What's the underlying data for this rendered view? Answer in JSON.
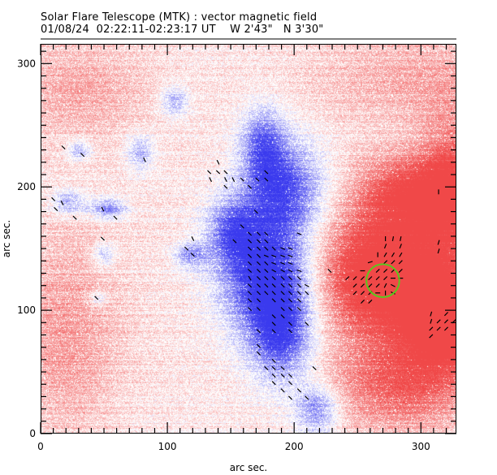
{
  "header": {
    "title": "Solar Flare Telescope (MTK) : vector magnetic field",
    "date": "01/08/24",
    "time_range": "02:22:11-02:23:17 UT",
    "pos_w": "W 2'43\"",
    "pos_n": "N 3'30\""
  },
  "colors": {
    "positive": "#f04848",
    "negative": "#3a3aee",
    "circle": "#5ac81e",
    "vector": "#000000"
  },
  "chart_data": {
    "type": "heatmap",
    "title": "Solar Flare Telescope (MTK) : vector magnetic field",
    "xlabel": "arc sec.",
    "ylabel": "arc sec.",
    "xlim": [
      0,
      328
    ],
    "ylim": [
      0,
      316
    ],
    "x_ticks": [
      0,
      100,
      200,
      300
    ],
    "x_tick_labels": [
      "0",
      "100",
      "200",
      "300"
    ],
    "y_ticks": [
      0,
      100,
      200,
      300
    ],
    "y_tick_labels": [
      "0",
      "100",
      "200",
      "300"
    ],
    "x_minor_step": 10,
    "y_minor_step": 10,
    "legend": "none",
    "field_sources": [
      {
        "polarity": "negative",
        "x": 178,
        "y": 130,
        "sx": 26,
        "sy": 34,
        "amp": 1.0
      },
      {
        "polarity": "negative",
        "x": 192,
        "y": 200,
        "sx": 22,
        "sy": 28,
        "amp": 0.75
      },
      {
        "polarity": "negative",
        "x": 175,
        "y": 235,
        "sx": 12,
        "sy": 22,
        "amp": 0.6
      },
      {
        "polarity": "negative",
        "x": 190,
        "y": 80,
        "sx": 18,
        "sy": 28,
        "amp": 0.75
      },
      {
        "polarity": "negative",
        "x": 218,
        "y": 20,
        "sx": 12,
        "sy": 14,
        "amp": 0.6
      },
      {
        "polarity": "negative",
        "x": 150,
        "y": 165,
        "sx": 14,
        "sy": 18,
        "amp": 0.55
      },
      {
        "polarity": "negative",
        "x": 118,
        "y": 145,
        "sx": 9,
        "sy": 7,
        "amp": 0.5
      },
      {
        "polarity": "negative",
        "x": 105,
        "y": 270,
        "sx": 8,
        "sy": 9,
        "amp": 0.45
      },
      {
        "polarity": "negative",
        "x": 22,
        "y": 188,
        "sx": 10,
        "sy": 7,
        "amp": 0.5
      },
      {
        "polarity": "negative",
        "x": 53,
        "y": 183,
        "sx": 10,
        "sy": 6,
        "amp": 0.6
      },
      {
        "polarity": "negative",
        "x": 30,
        "y": 230,
        "sx": 7,
        "sy": 6,
        "amp": 0.45
      },
      {
        "polarity": "negative",
        "x": 78,
        "y": 228,
        "sx": 8,
        "sy": 10,
        "amp": 0.45
      },
      {
        "polarity": "negative",
        "x": 50,
        "y": 145,
        "sx": 6,
        "sy": 7,
        "amp": 0.4
      },
      {
        "polarity": "negative",
        "x": 45,
        "y": 110,
        "sx": 5,
        "sy": 5,
        "amp": 0.35
      },
      {
        "polarity": "positive",
        "x": 272,
        "y": 128,
        "sx": 40,
        "sy": 34,
        "amp": 1.0
      },
      {
        "polarity": "positive",
        "x": 320,
        "y": 90,
        "sx": 22,
        "sy": 26,
        "amp": 0.8
      },
      {
        "polarity": "positive",
        "x": 290,
        "y": 195,
        "sx": 30,
        "sy": 22,
        "amp": 0.65
      },
      {
        "polarity": "positive",
        "x": 285,
        "y": 40,
        "sx": 40,
        "sy": 28,
        "amp": 0.55
      },
      {
        "polarity": "positive",
        "x": 325,
        "y": 200,
        "sx": 18,
        "sy": 40,
        "amp": 0.55
      },
      {
        "polarity": "positive",
        "x": 20,
        "y": 80,
        "sx": 30,
        "sy": 60,
        "amp": 0.3
      },
      {
        "polarity": "positive",
        "x": 30,
        "y": 280,
        "sx": 40,
        "sy": 30,
        "amp": 0.25
      },
      {
        "polarity": "positive",
        "x": 300,
        "y": 290,
        "sx": 60,
        "sy": 30,
        "amp": 0.25
      }
    ],
    "sunspot_circle": {
      "x": 270,
      "y": 124,
      "r": 13
    },
    "vectors": [
      {
        "x": 18,
        "y": 232,
        "dx": 1,
        "dy": -1
      },
      {
        "x": 33,
        "y": 226,
        "dx": 1,
        "dy": -1
      },
      {
        "x": 82,
        "y": 222,
        "dx": 0.5,
        "dy": -1
      },
      {
        "x": 10,
        "y": 190,
        "dx": 1,
        "dy": -1
      },
      {
        "x": 17,
        "y": 187,
        "dx": 0.5,
        "dy": -1
      },
      {
        "x": 12,
        "y": 182,
        "dx": 1,
        "dy": -1
      },
      {
        "x": 27,
        "y": 175,
        "dx": 1,
        "dy": -1
      },
      {
        "x": 49,
        "y": 182,
        "dx": -0.5,
        "dy": 1
      },
      {
        "x": 59,
        "y": 175,
        "dx": 1,
        "dy": -1
      },
      {
        "x": 49,
        "y": 158,
        "dx": -1,
        "dy": 1
      },
      {
        "x": 44,
        "y": 110,
        "dx": 1,
        "dy": -1
      },
      {
        "x": 120,
        "y": 158,
        "dx": 0.5,
        "dy": -1
      },
      {
        "x": 115,
        "y": 150,
        "dx": 1,
        "dy": -1
      },
      {
        "x": 120,
        "y": 145,
        "dx": 1,
        "dy": -1
      },
      {
        "x": 140,
        "y": 220,
        "dx": 0.5,
        "dy": -1
      },
      {
        "x": 133,
        "y": 212,
        "dx": 1,
        "dy": -1
      },
      {
        "x": 140,
        "y": 212,
        "dx": 1,
        "dy": -1
      },
      {
        "x": 146,
        "y": 212,
        "dx": 1,
        "dy": -1
      },
      {
        "x": 134,
        "y": 206,
        "dx": 0.5,
        "dy": -1
      },
      {
        "x": 146,
        "y": 206,
        "dx": 0.5,
        "dy": -1
      },
      {
        "x": 152,
        "y": 206,
        "dx": 0.5,
        "dy": -1
      },
      {
        "x": 159,
        "y": 206,
        "dx": 1,
        "dy": -1
      },
      {
        "x": 171,
        "y": 206,
        "dx": 1,
        "dy": -1
      },
      {
        "x": 178,
        "y": 206,
        "dx": 1,
        "dy": -1
      },
      {
        "x": 178,
        "y": 212,
        "dx": 1,
        "dy": -1
      },
      {
        "x": 146,
        "y": 200,
        "dx": 1,
        "dy": -1
      },
      {
        "x": 165,
        "y": 200,
        "dx": 1,
        "dy": -1
      },
      {
        "x": 170,
        "y": 180,
        "dx": 1,
        "dy": -1
      },
      {
        "x": 159,
        "y": 168,
        "dx": 1,
        "dy": -1
      },
      {
        "x": 165,
        "y": 162,
        "dx": 1,
        "dy": -1
      },
      {
        "x": 172,
        "y": 162,
        "dx": 1,
        "dy": -1
      },
      {
        "x": 178,
        "y": 162,
        "dx": 1,
        "dy": -1
      },
      {
        "x": 204,
        "y": 162,
        "dx": 1,
        "dy": -0.4
      },
      {
        "x": 153,
        "y": 156,
        "dx": 1,
        "dy": -1
      },
      {
        "x": 165,
        "y": 156,
        "dx": 1,
        "dy": -1
      },
      {
        "x": 172,
        "y": 156,
        "dx": 1,
        "dy": -1
      },
      {
        "x": 178,
        "y": 156,
        "dx": 1,
        "dy": -1
      },
      {
        "x": 165,
        "y": 150,
        "dx": 1,
        "dy": -1
      },
      {
        "x": 172,
        "y": 150,
        "dx": 1,
        "dy": -1
      },
      {
        "x": 178,
        "y": 150,
        "dx": 1,
        "dy": -1
      },
      {
        "x": 184,
        "y": 150,
        "dx": 1,
        "dy": -1
      },
      {
        "x": 191,
        "y": 150,
        "dx": 1,
        "dy": -0.4
      },
      {
        "x": 197,
        "y": 150,
        "dx": 1,
        "dy": -0.4
      },
      {
        "x": 165,
        "y": 144,
        "dx": 1,
        "dy": -1
      },
      {
        "x": 172,
        "y": 144,
        "dx": 1,
        "dy": -1
      },
      {
        "x": 178,
        "y": 144,
        "dx": 1,
        "dy": -0.4
      },
      {
        "x": 184,
        "y": 144,
        "dx": 1,
        "dy": -0.4
      },
      {
        "x": 191,
        "y": 144,
        "dx": 1,
        "dy": -0.4
      },
      {
        "x": 197,
        "y": 144,
        "dx": 1,
        "dy": -0.4
      },
      {
        "x": 165,
        "y": 138,
        "dx": 1,
        "dy": -1
      },
      {
        "x": 172,
        "y": 138,
        "dx": 1,
        "dy": -1
      },
      {
        "x": 178,
        "y": 138,
        "dx": 1,
        "dy": -1
      },
      {
        "x": 184,
        "y": 138,
        "dx": 1,
        "dy": -0.4
      },
      {
        "x": 191,
        "y": 138,
        "dx": 1,
        "dy": -0.4
      },
      {
        "x": 197,
        "y": 138,
        "dx": 1,
        "dy": -0.4
      },
      {
        "x": 165,
        "y": 132,
        "dx": 1,
        "dy": -1
      },
      {
        "x": 172,
        "y": 132,
        "dx": 1,
        "dy": -1
      },
      {
        "x": 178,
        "y": 132,
        "dx": 1,
        "dy": -1
      },
      {
        "x": 184,
        "y": 132,
        "dx": 1,
        "dy": -0.6
      },
      {
        "x": 191,
        "y": 132,
        "dx": 1,
        "dy": -0.6
      },
      {
        "x": 197,
        "y": 132,
        "dx": 1,
        "dy": -0.6
      },
      {
        "x": 204,
        "y": 132,
        "dx": 1,
        "dy": -0.3
      },
      {
        "x": 228,
        "y": 132,
        "dx": 1,
        "dy": -1
      },
      {
        "x": 165,
        "y": 126,
        "dx": 0.6,
        "dy": -1
      },
      {
        "x": 172,
        "y": 126,
        "dx": 1,
        "dy": -1
      },
      {
        "x": 178,
        "y": 126,
        "dx": 1,
        "dy": -1
      },
      {
        "x": 184,
        "y": 126,
        "dx": 1,
        "dy": -1
      },
      {
        "x": 191,
        "y": 126,
        "dx": 1,
        "dy": -1
      },
      {
        "x": 197,
        "y": 126,
        "dx": 1,
        "dy": -1
      },
      {
        "x": 204,
        "y": 126,
        "dx": 1,
        "dy": -1
      },
      {
        "x": 165,
        "y": 120,
        "dx": 1,
        "dy": -1
      },
      {
        "x": 172,
        "y": 120,
        "dx": 1,
        "dy": -1
      },
      {
        "x": 178,
        "y": 120,
        "dx": 1,
        "dy": -1
      },
      {
        "x": 184,
        "y": 120,
        "dx": 1,
        "dy": -1
      },
      {
        "x": 191,
        "y": 120,
        "dx": 1,
        "dy": -1
      },
      {
        "x": 197,
        "y": 120,
        "dx": 1,
        "dy": -1
      },
      {
        "x": 204,
        "y": 120,
        "dx": 1,
        "dy": -1
      },
      {
        "x": 210,
        "y": 120,
        "dx": 1,
        "dy": -0.5
      },
      {
        "x": 165,
        "y": 114,
        "dx": 1,
        "dy": -1
      },
      {
        "x": 172,
        "y": 114,
        "dx": 1,
        "dy": -1
      },
      {
        "x": 178,
        "y": 114,
        "dx": 1,
        "dy": -1
      },
      {
        "x": 184,
        "y": 114,
        "dx": 1,
        "dy": -1
      },
      {
        "x": 191,
        "y": 114,
        "dx": 1,
        "dy": -1
      },
      {
        "x": 197,
        "y": 114,
        "dx": 1,
        "dy": -1
      },
      {
        "x": 204,
        "y": 114,
        "dx": 1,
        "dy": -1
      },
      {
        "x": 210,
        "y": 114,
        "dx": 1,
        "dy": -1
      },
      {
        "x": 165,
        "y": 108,
        "dx": 1,
        "dy": -1
      },
      {
        "x": 172,
        "y": 108,
        "dx": 1,
        "dy": -1
      },
      {
        "x": 184,
        "y": 108,
        "dx": 1,
        "dy": -1
      },
      {
        "x": 191,
        "y": 108,
        "dx": 1,
        "dy": -1
      },
      {
        "x": 197,
        "y": 108,
        "dx": 1,
        "dy": -1
      },
      {
        "x": 204,
        "y": 108,
        "dx": 1,
        "dy": -1
      },
      {
        "x": 165,
        "y": 101,
        "dx": 1,
        "dy": -1
      },
      {
        "x": 172,
        "y": 101,
        "dx": 1,
        "dy": -1
      },
      {
        "x": 191,
        "y": 101,
        "dx": 1,
        "dy": -1
      },
      {
        "x": 197,
        "y": 101,
        "dx": 1,
        "dy": -1
      },
      {
        "x": 204,
        "y": 101,
        "dx": 1,
        "dy": -1
      },
      {
        "x": 184,
        "y": 95,
        "dx": 1,
        "dy": -1
      },
      {
        "x": 191,
        "y": 95,
        "dx": 1,
        "dy": -1
      },
      {
        "x": 184,
        "y": 89,
        "dx": 1,
        "dy": -1
      },
      {
        "x": 197,
        "y": 89,
        "dx": 1,
        "dy": -1
      },
      {
        "x": 210,
        "y": 89,
        "dx": 1,
        "dy": -1
      },
      {
        "x": 172,
        "y": 83,
        "dx": 1,
        "dy": -1
      },
      {
        "x": 184,
        "y": 83,
        "dx": 1,
        "dy": -1
      },
      {
        "x": 197,
        "y": 83,
        "dx": 1,
        "dy": -1
      },
      {
        "x": 172,
        "y": 71,
        "dx": 1,
        "dy": -1
      },
      {
        "x": 172,
        "y": 65,
        "dx": 1,
        "dy": -1
      },
      {
        "x": 184,
        "y": 59,
        "dx": 1,
        "dy": -1
      },
      {
        "x": 178,
        "y": 53,
        "dx": 1,
        "dy": -1
      },
      {
        "x": 184,
        "y": 53,
        "dx": 1,
        "dy": -1
      },
      {
        "x": 191,
        "y": 53,
        "dx": 1,
        "dy": -1
      },
      {
        "x": 216,
        "y": 53,
        "dx": 1,
        "dy": -1
      },
      {
        "x": 184,
        "y": 47,
        "dx": 1,
        "dy": -1
      },
      {
        "x": 191,
        "y": 47,
        "dx": 1,
        "dy": -1
      },
      {
        "x": 197,
        "y": 47,
        "dx": 1,
        "dy": -1
      },
      {
        "x": 184,
        "y": 41,
        "dx": 1,
        "dy": -1
      },
      {
        "x": 197,
        "y": 41,
        "dx": 1,
        "dy": -1
      },
      {
        "x": 191,
        "y": 35,
        "dx": 1,
        "dy": -1
      },
      {
        "x": 204,
        "y": 35,
        "dx": 1,
        "dy": -1
      },
      {
        "x": 197,
        "y": 29,
        "dx": 1,
        "dy": -1
      },
      {
        "x": 210,
        "y": 29,
        "dx": 1,
        "dy": -1
      },
      {
        "x": 272,
        "y": 158,
        "dx": 0,
        "dy": 1
      },
      {
        "x": 278,
        "y": 158,
        "dx": 0.2,
        "dy": 1
      },
      {
        "x": 284,
        "y": 158,
        "dx": 0.2,
        "dy": 1
      },
      {
        "x": 272,
        "y": 152,
        "dx": 0.4,
        "dy": 1
      },
      {
        "x": 284,
        "y": 152,
        "dx": 0.4,
        "dy": 1
      },
      {
        "x": 266,
        "y": 145,
        "dx": 0,
        "dy": 1
      },
      {
        "x": 272,
        "y": 145,
        "dx": 0.6,
        "dy": 1
      },
      {
        "x": 278,
        "y": 145,
        "dx": 0.6,
        "dy": 1
      },
      {
        "x": 284,
        "y": 145,
        "dx": 0.6,
        "dy": 1
      },
      {
        "x": 260,
        "y": 139,
        "dx": 1,
        "dy": 0.3
      },
      {
        "x": 272,
        "y": 139,
        "dx": 1,
        "dy": 1
      },
      {
        "x": 278,
        "y": 139,
        "dx": 1,
        "dy": 1
      },
      {
        "x": 284,
        "y": 139,
        "dx": 1,
        "dy": 1
      },
      {
        "x": 254,
        "y": 132,
        "dx": 1,
        "dy": 0
      },
      {
        "x": 266,
        "y": 132,
        "dx": 1,
        "dy": 1
      },
      {
        "x": 272,
        "y": 132,
        "dx": 1,
        "dy": 1
      },
      {
        "x": 278,
        "y": 132,
        "dx": 1,
        "dy": 1
      },
      {
        "x": 284,
        "y": 132,
        "dx": 1,
        "dy": 1
      },
      {
        "x": 242,
        "y": 126,
        "dx": 1,
        "dy": 1
      },
      {
        "x": 248,
        "y": 126,
        "dx": 1,
        "dy": 1
      },
      {
        "x": 254,
        "y": 126,
        "dx": 1,
        "dy": 1
      },
      {
        "x": 260,
        "y": 126,
        "dx": 1,
        "dy": 1
      },
      {
        "x": 266,
        "y": 126,
        "dx": 1,
        "dy": 1
      },
      {
        "x": 272,
        "y": 126,
        "dx": 1,
        "dy": 1
      },
      {
        "x": 278,
        "y": 126,
        "dx": 1,
        "dy": 0
      },
      {
        "x": 284,
        "y": 126,
        "dx": 1,
        "dy": 0
      },
      {
        "x": 248,
        "y": 120,
        "dx": 1,
        "dy": 1
      },
      {
        "x": 254,
        "y": 120,
        "dx": 1,
        "dy": 1
      },
      {
        "x": 260,
        "y": 120,
        "dx": 1,
        "dy": 1
      },
      {
        "x": 266,
        "y": 120,
        "dx": 1,
        "dy": 1
      },
      {
        "x": 272,
        "y": 120,
        "dx": 0.5,
        "dy": 1
      },
      {
        "x": 278,
        "y": 120,
        "dx": 1,
        "dy": -0.5
      },
      {
        "x": 248,
        "y": 114,
        "dx": 1,
        "dy": 1
      },
      {
        "x": 254,
        "y": 114,
        "dx": 1,
        "dy": 1
      },
      {
        "x": 260,
        "y": 114,
        "dx": 1,
        "dy": 1
      },
      {
        "x": 266,
        "y": 114,
        "dx": 1,
        "dy": 0
      },
      {
        "x": 272,
        "y": 114,
        "dx": 0,
        "dy": 1
      },
      {
        "x": 278,
        "y": 114,
        "dx": 1,
        "dy": -0.5
      },
      {
        "x": 254,
        "y": 107,
        "dx": 1,
        "dy": 1
      },
      {
        "x": 260,
        "y": 107,
        "dx": 1,
        "dy": 1
      },
      {
        "x": 314,
        "y": 155,
        "dx": 0.3,
        "dy": 1
      },
      {
        "x": 314,
        "y": 148,
        "dx": 0.3,
        "dy": 1
      },
      {
        "x": 314,
        "y": 196,
        "dx": 0,
        "dy": 1
      },
      {
        "x": 308,
        "y": 97,
        "dx": 0.3,
        "dy": 1
      },
      {
        "x": 320,
        "y": 97,
        "dx": 1,
        "dy": 1
      },
      {
        "x": 308,
        "y": 91,
        "dx": 0.3,
        "dy": 1
      },
      {
        "x": 314,
        "y": 91,
        "dx": 1,
        "dy": 1
      },
      {
        "x": 320,
        "y": 91,
        "dx": 1,
        "dy": 1
      },
      {
        "x": 326,
        "y": 91,
        "dx": 1,
        "dy": 1
      },
      {
        "x": 308,
        "y": 85,
        "dx": 1,
        "dy": 1
      },
      {
        "x": 314,
        "y": 85,
        "dx": 1,
        "dy": 1
      },
      {
        "x": 320,
        "y": 85,
        "dx": 1,
        "dy": 1
      },
      {
        "x": 308,
        "y": 79,
        "dx": 1,
        "dy": 1
      }
    ]
  }
}
